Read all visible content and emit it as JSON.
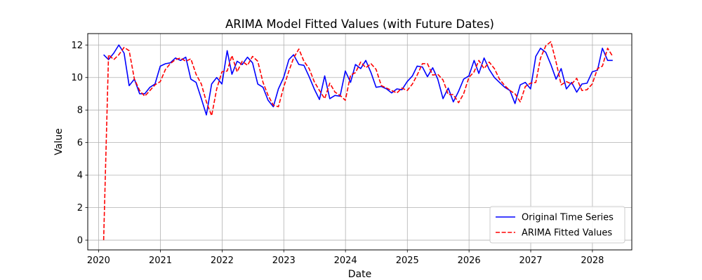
{
  "chart_data": {
    "type": "line",
    "title": "ARIMA Model Fitted Values (with Future Dates)",
    "xlabel": "Date",
    "ylabel": "Value",
    "xlim": [
      "2019-10-29",
      "2028-08-21"
    ],
    "ylim": [
      -0.6,
      12.7
    ],
    "x_ticks": [
      "2020",
      "2021",
      "2022",
      "2023",
      "2024",
      "2025",
      "2026",
      "2027",
      "2028"
    ],
    "y_ticks": [
      0,
      2,
      4,
      6,
      8,
      10,
      12
    ],
    "grid": true,
    "legend_position": "lower-right",
    "x": [
      "2020-01-31",
      "2020-02-29",
      "2020-03-31",
      "2020-04-30",
      "2020-05-31",
      "2020-06-30",
      "2020-07-31",
      "2020-08-31",
      "2020-09-30",
      "2020-10-31",
      "2020-11-30",
      "2020-12-31",
      "2021-01-31",
      "2021-02-28",
      "2021-03-31",
      "2021-04-30",
      "2021-05-31",
      "2021-06-30",
      "2021-07-31",
      "2021-08-31",
      "2021-09-30",
      "2021-10-31",
      "2021-11-30",
      "2021-12-31",
      "2022-01-31",
      "2022-02-28",
      "2022-03-31",
      "2022-04-30",
      "2022-05-31",
      "2022-06-30",
      "2022-07-31",
      "2022-08-31",
      "2022-09-30",
      "2022-10-31",
      "2022-11-30",
      "2022-12-31",
      "2023-01-31",
      "2023-02-28",
      "2023-03-31",
      "2023-04-30",
      "2023-05-31",
      "2023-06-30",
      "2023-07-31",
      "2023-08-31",
      "2023-09-30",
      "2023-10-31",
      "2023-11-30",
      "2023-12-31",
      "2024-01-31",
      "2024-02-29",
      "2024-03-31",
      "2024-04-30",
      "2024-05-31",
      "2024-06-30",
      "2024-07-31",
      "2024-08-31",
      "2024-09-30",
      "2024-10-31",
      "2024-11-30",
      "2024-12-31",
      "2025-01-31",
      "2025-02-28",
      "2025-03-31",
      "2025-04-30",
      "2025-05-31",
      "2025-06-30",
      "2025-07-31",
      "2025-08-31",
      "2025-09-30",
      "2025-10-31",
      "2025-11-30",
      "2025-12-31",
      "2026-01-31",
      "2026-02-28",
      "2026-03-31",
      "2026-04-30",
      "2026-05-31",
      "2026-06-30",
      "2026-07-31",
      "2026-08-31",
      "2026-09-30",
      "2026-10-31",
      "2026-11-30",
      "2026-12-31",
      "2027-01-31",
      "2027-02-28",
      "2027-03-31",
      "2027-04-30",
      "2027-05-31",
      "2027-06-30",
      "2027-07-31",
      "2027-08-31",
      "2027-09-30",
      "2027-10-31",
      "2027-11-30",
      "2027-12-31",
      "2028-01-31",
      "2028-02-29",
      "2028-03-31",
      "2028-04-30"
    ],
    "series": [
      {
        "name": "Original Time Series",
        "color": "#0000ff",
        "style": "solid",
        "values": [
          11.4,
          11.1,
          11.5,
          12.0,
          11.5,
          9.5,
          9.9,
          9.0,
          9.0,
          9.4,
          9.6,
          10.7,
          10.85,
          10.9,
          11.2,
          11.05,
          11.25,
          9.9,
          9.7,
          8.7,
          7.7,
          9.6,
          10.0,
          9.6,
          11.65,
          10.2,
          11.0,
          10.8,
          11.25,
          10.9,
          9.6,
          9.4,
          8.6,
          8.2,
          9.3,
          10.0,
          11.1,
          11.4,
          10.8,
          10.75,
          10.05,
          9.3,
          8.65,
          10.1,
          8.7,
          8.9,
          8.85,
          10.4,
          9.7,
          10.8,
          10.55,
          11.05,
          10.3,
          9.4,
          9.45,
          9.3,
          9.05,
          9.3,
          9.25,
          9.75,
          10.1,
          10.7,
          10.65,
          10.05,
          10.6,
          9.9,
          8.7,
          9.35,
          8.5,
          9.15,
          9.9,
          10.1,
          11.05,
          10.25,
          11.2,
          10.5,
          10.0,
          9.7,
          9.4,
          9.2,
          8.4,
          9.55,
          9.7,
          9.3,
          11.3,
          11.8,
          11.55,
          10.8,
          9.9,
          10.55,
          9.3,
          9.7,
          9.1,
          9.6,
          9.65,
          10.35,
          10.45,
          11.8,
          11.05,
          11.05
        ]
      },
      {
        "name": "ARIMA Fitted Values",
        "color": "#ff0000",
        "style": "dashed",
        "values": [
          0.0,
          11.4,
          11.1,
          11.4,
          11.85,
          11.65,
          9.9,
          9.2,
          8.85,
          9.2,
          9.55,
          9.75,
          10.5,
          10.85,
          11.1,
          11.2,
          11.0,
          11.15,
          10.2,
          9.6,
          8.5,
          7.65,
          9.3,
          10.35,
          10.4,
          11.35,
          10.35,
          11.0,
          10.75,
          11.3,
          11.0,
          9.7,
          8.9,
          8.3,
          8.2,
          9.4,
          10.4,
          11.2,
          11.75,
          11.0,
          10.55,
          9.75,
          9.2,
          8.7,
          9.65,
          9.1,
          8.9,
          8.6,
          10.15,
          10.3,
          10.95,
          10.6,
          10.85,
          10.5,
          9.5,
          9.35,
          9.2,
          9.05,
          9.35,
          9.2,
          9.6,
          10.15,
          10.85,
          10.85,
          10.15,
          10.2,
          9.85,
          8.95,
          8.95,
          8.45,
          9.0,
          10.0,
          10.35,
          11.05,
          10.55,
          10.95,
          10.55,
          9.9,
          9.5,
          9.2,
          9.0,
          8.5,
          9.45,
          9.65,
          9.7,
          11.2,
          11.95,
          12.2,
          10.95,
          9.55,
          9.75,
          9.6,
          9.95,
          9.2,
          9.25,
          9.6,
          10.55,
          10.7,
          11.8,
          11.3
        ]
      }
    ]
  }
}
